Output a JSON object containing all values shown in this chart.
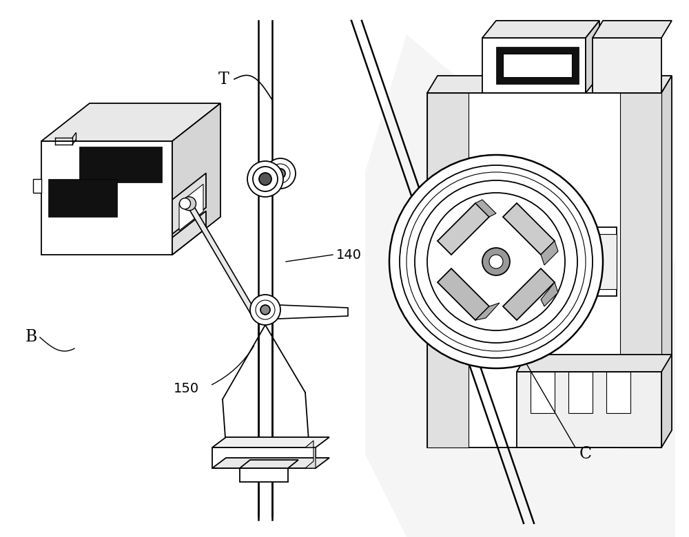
{
  "background_color": "#ffffff",
  "line_color": "#000000",
  "label_T": "T",
  "label_140": "140",
  "label_150": "150",
  "label_B": "B",
  "label_C": "C",
  "figsize": [
    10.0,
    7.8
  ],
  "dpi": 100
}
